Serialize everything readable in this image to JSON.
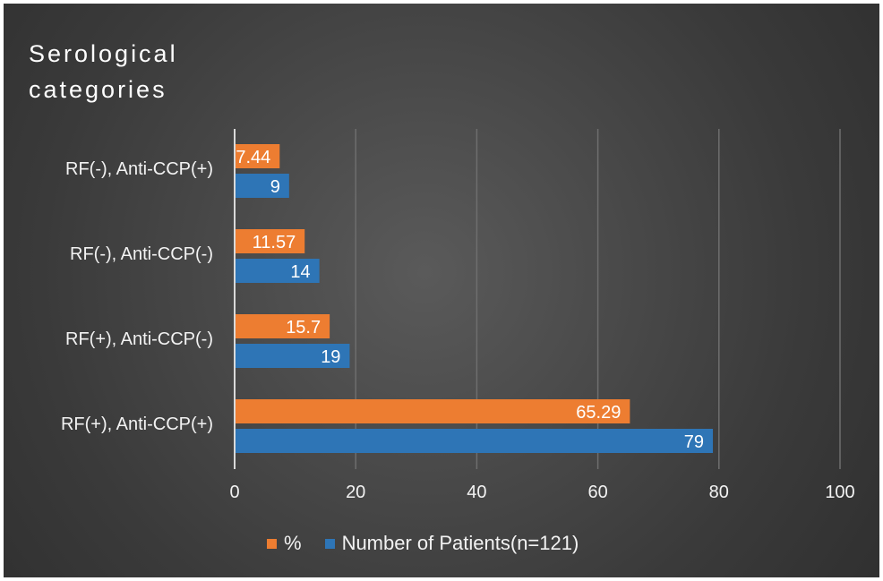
{
  "chart_data": {
    "type": "bar",
    "orientation": "horizontal",
    "title": "Serological\ncategories",
    "categories": [
      "RF(+), Anti-CCP(+)",
      "RF(+), Anti-CCP(-)",
      "RF(-), Anti-CCP(-)",
      "RF(-), Anti-CCP(+)"
    ],
    "series": [
      {
        "name": "%",
        "color": "#ed7d31",
        "values": [
          65.29,
          15.7,
          11.57,
          7.44
        ]
      },
      {
        "name": "Number of Patients(n=121)",
        "color": "#2e75b6",
        "values": [
          79,
          19,
          14,
          9
        ]
      }
    ],
    "xlim": [
      0,
      100
    ],
    "xticks": [
      0,
      20,
      40,
      60,
      80,
      100
    ],
    "grid": true,
    "legend_position": "bottom"
  }
}
